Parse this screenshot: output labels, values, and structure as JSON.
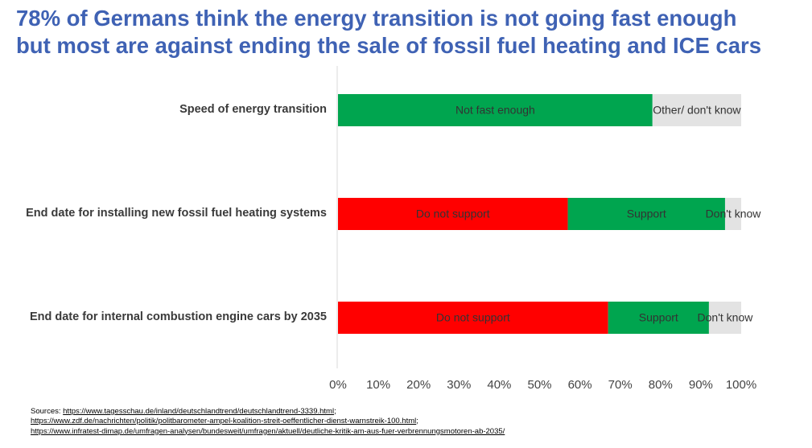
{
  "title": {
    "line1": "78% of Germans think the energy transition is not going fast enough",
    "line2": "but most are against ending the sale of fossil fuel heating and ICE cars"
  },
  "chart_data": {
    "type": "bar",
    "orientation": "horizontal",
    "stacked": true,
    "categories": [
      "Speed of energy transition",
      "End date for installing new fossil fuel heating systems",
      "End date for internal combustion engine cars by 2035"
    ],
    "bars": [
      {
        "segments": [
          {
            "label": "Not fast enough",
            "value": 78,
            "color": "#00a54f"
          },
          {
            "label": "Other/ don't know",
            "value": 22,
            "color": "#e3e3e3"
          }
        ]
      },
      {
        "segments": [
          {
            "label": "Do not support",
            "value": 57,
            "color": "#ff0000"
          },
          {
            "label": "Support",
            "value": 39,
            "color": "#00a54f"
          },
          {
            "label": "Don't know",
            "value": 4,
            "color": "#e3e3e3"
          }
        ]
      },
      {
        "segments": [
          {
            "label": "Do not support",
            "value": 67,
            "color": "#ff0000"
          },
          {
            "label": "Support",
            "value": 25,
            "color": "#00a54f"
          },
          {
            "label": "Don't know",
            "value": 8,
            "color": "#e3e3e3"
          }
        ]
      }
    ],
    "xlim": [
      0,
      100
    ],
    "x_ticks": [
      "0%",
      "10%",
      "20%",
      "30%",
      "40%",
      "50%",
      "60%",
      "70%",
      "80%",
      "90%",
      "100%"
    ],
    "grid": false,
    "legend": "none"
  },
  "sources": {
    "prefix": "Sources: ",
    "links": [
      "https://www.tagesschau.de/inland/deutschlandtrend/deutschlandtrend-3339.html",
      "https://www.zdf.de/nachrichten/politik/politbarometer-ampel-koalition-streit-oeffentlicher-dienst-warnstreik-100.html",
      "https://www.infratest-dimap.de/umfragen-analysen/bundesweit/umfragen/aktuell/deutliche-kritik-am-aus-fuer-verbrennungsmotoren-ab-2035/"
    ],
    "separators": [
      ";",
      ";",
      ""
    ]
  }
}
